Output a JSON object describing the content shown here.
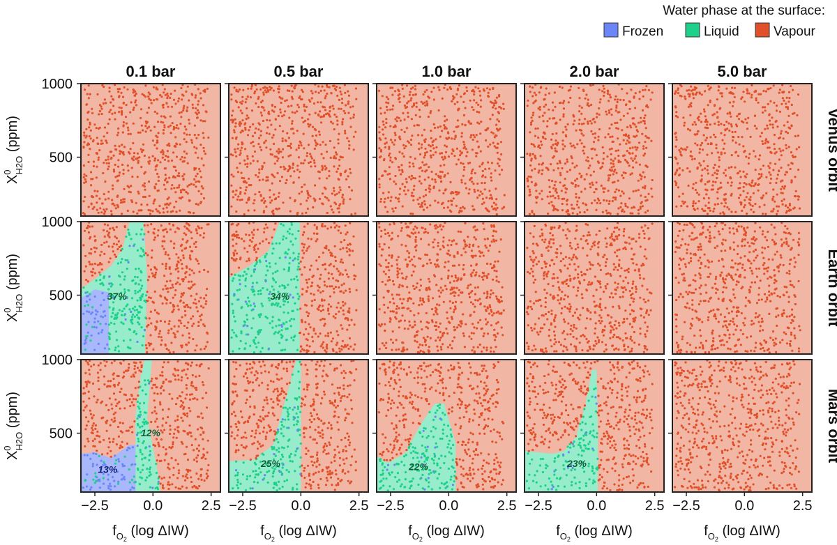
{
  "chart_data": {
    "type": "scatter",
    "legend": {
      "title": "Water phase at the surface:",
      "placement": "top-right",
      "items": [
        {
          "name": "Frozen",
          "color": "#6b86f7"
        },
        {
          "name": "Liquid",
          "color": "#1fd08a"
        },
        {
          "name": "Vapour",
          "color": "#e0502a"
        }
      ]
    },
    "colors": {
      "vapour_region": "#f2b7a4",
      "liquid_region": "#96eccb",
      "frozen_region": "#a9b8fb",
      "frozen_point": "#6b86f7",
      "liquid_point": "#1fd08a",
      "vapour_point": "#e0502a"
    },
    "columns": [
      "0.1 bar",
      "0.5 bar",
      "1.0 bar",
      "2.0 bar",
      "5.0 bar"
    ],
    "rows": [
      "Venus orbit",
      "Earth orbit",
      "Mars orbit"
    ],
    "x_axis": {
      "label_main": "f",
      "label_sub": "O",
      "label_sub2": "2",
      "label_rest": " (log ΔIW)",
      "range": [
        -3.1,
        2.9
      ],
      "ticks": [
        -2.5,
        0.0,
        2.5
      ],
      "tick_labels": [
        "−2.5",
        "0.0",
        "2.5"
      ]
    },
    "y_axis": {
      "label_main": "X",
      "label_sup": "0",
      "label_sub": "H",
      "label_sub2": "2",
      "label_sub3": "O",
      "label_rest": " (ppm)",
      "range": [
        100,
        1000
      ],
      "ticks": [
        500,
        1000
      ],
      "tick_labels": [
        "500",
        "1000"
      ]
    },
    "panels": [
      {
        "row": 0,
        "col": 0,
        "liquid_pct": "",
        "frozen_pct": "",
        "liquid": [],
        "frozen": []
      },
      {
        "row": 0,
        "col": 1,
        "liquid_pct": "",
        "frozen_pct": "",
        "liquid": [],
        "frozen": []
      },
      {
        "row": 0,
        "col": 2,
        "liquid_pct": "",
        "frozen_pct": "",
        "liquid": [],
        "frozen": []
      },
      {
        "row": 0,
        "col": 3,
        "liquid_pct": "",
        "frozen_pct": "",
        "liquid": [],
        "frozen": []
      },
      {
        "row": 0,
        "col": 4,
        "liquid_pct": "",
        "frozen_pct": "",
        "liquid": [],
        "frozen": []
      },
      {
        "row": 1,
        "col": 0,
        "liquid_pct": "37%",
        "liquid_pct_at": [
          -1.55,
          470
        ],
        "frozen_pct": "",
        "liquid": [
          [
            -3.1,
            100
          ],
          [
            -3.1,
            540
          ],
          [
            -2.5,
            610
          ],
          [
            -1.8,
            700
          ],
          [
            -1.3,
            820
          ],
          [
            -1.0,
            1000
          ],
          [
            -0.4,
            1000
          ],
          [
            -0.25,
            600
          ],
          [
            -0.35,
            100
          ]
        ],
        "frozen": [
          [
            -3.1,
            100
          ],
          [
            -3.1,
            480
          ],
          [
            -2.5,
            540
          ],
          [
            -1.9,
            520
          ],
          [
            -1.9,
            100
          ]
        ]
      },
      {
        "row": 1,
        "col": 1,
        "liquid_pct": "34%",
        "liquid_pct_at": [
          -0.9,
          470
        ],
        "frozen_pct": "",
        "liquid": [
          [
            -3.1,
            100
          ],
          [
            -3.1,
            620
          ],
          [
            -2.2,
            700
          ],
          [
            -1.4,
            800
          ],
          [
            -0.9,
            1000
          ],
          [
            -0.05,
            1000
          ],
          [
            -0.05,
            100
          ]
        ],
        "frozen": []
      },
      {
        "row": 1,
        "col": 2,
        "liquid_pct": "",
        "frozen_pct": "",
        "liquid": [],
        "frozen": []
      },
      {
        "row": 1,
        "col": 3,
        "liquid_pct": "",
        "frozen_pct": "",
        "liquid": [],
        "frozen": []
      },
      {
        "row": 1,
        "col": 4,
        "liquid_pct": "",
        "frozen_pct": "",
        "liquid": [],
        "frozen": []
      },
      {
        "row": 2,
        "col": 0,
        "liquid_pct": "12%",
        "liquid_pct_at": [
          -0.1,
          480
        ],
        "frozen_pct": "13%",
        "frozen_pct_at": [
          -1.95,
          230
        ],
        "liquid": [
          [
            -0.75,
            100
          ],
          [
            -0.75,
            620
          ],
          [
            -0.55,
            870
          ],
          [
            -0.35,
            1000
          ],
          [
            -0.05,
            1000
          ],
          [
            -0.25,
            600
          ],
          [
            0.25,
            200
          ],
          [
            0.3,
            100
          ]
        ],
        "frozen": [
          [
            -3.1,
            100
          ],
          [
            -3.1,
            360
          ],
          [
            -2.5,
            370
          ],
          [
            -1.8,
            330
          ],
          [
            -1.0,
            420
          ],
          [
            -0.75,
            420
          ],
          [
            -0.75,
            100
          ]
        ]
      },
      {
        "row": 2,
        "col": 1,
        "liquid_pct": "25%",
        "liquid_pct_at": [
          -1.3,
          270
        ],
        "frozen_pct": "",
        "liquid": [
          [
            -3.1,
            100
          ],
          [
            -3.1,
            310
          ],
          [
            -2.0,
            320
          ],
          [
            -1.2,
            420
          ],
          [
            -0.5,
            820
          ],
          [
            -0.2,
            1000
          ],
          [
            0.0,
            1000
          ],
          [
            0.0,
            100
          ]
        ],
        "frozen": []
      },
      {
        "row": 2,
        "col": 2,
        "liquid_pct": "22%",
        "liquid_pct_at": [
          -1.3,
          250
        ],
        "frozen_pct": "",
        "liquid": [
          [
            -3.1,
            100
          ],
          [
            -3.1,
            340
          ],
          [
            -2.6,
            300
          ],
          [
            -1.9,
            360
          ],
          [
            -1.2,
            560
          ],
          [
            -0.6,
            700
          ],
          [
            -0.2,
            700
          ],
          [
            0.3,
            430
          ],
          [
            0.3,
            100
          ]
        ],
        "frozen": []
      },
      {
        "row": 2,
        "col": 3,
        "liquid_pct": "23%",
        "liquid_pct_at": [
          -0.85,
          270
        ],
        "frozen_pct": "",
        "liquid": [
          [
            -3.1,
            100
          ],
          [
            -3.1,
            380
          ],
          [
            -2.5,
            370
          ],
          [
            -1.9,
            360
          ],
          [
            -1.4,
            380
          ],
          [
            -0.9,
            470
          ],
          [
            -0.5,
            680
          ],
          [
            -0.2,
            930
          ],
          [
            0.0,
            930
          ],
          [
            0.05,
            600
          ],
          [
            0.05,
            100
          ]
        ],
        "frozen": []
      },
      {
        "row": 2,
        "col": 4,
        "liquid_pct": "",
        "frozen_pct": "",
        "liquid": [],
        "frozen": []
      }
    ]
  }
}
